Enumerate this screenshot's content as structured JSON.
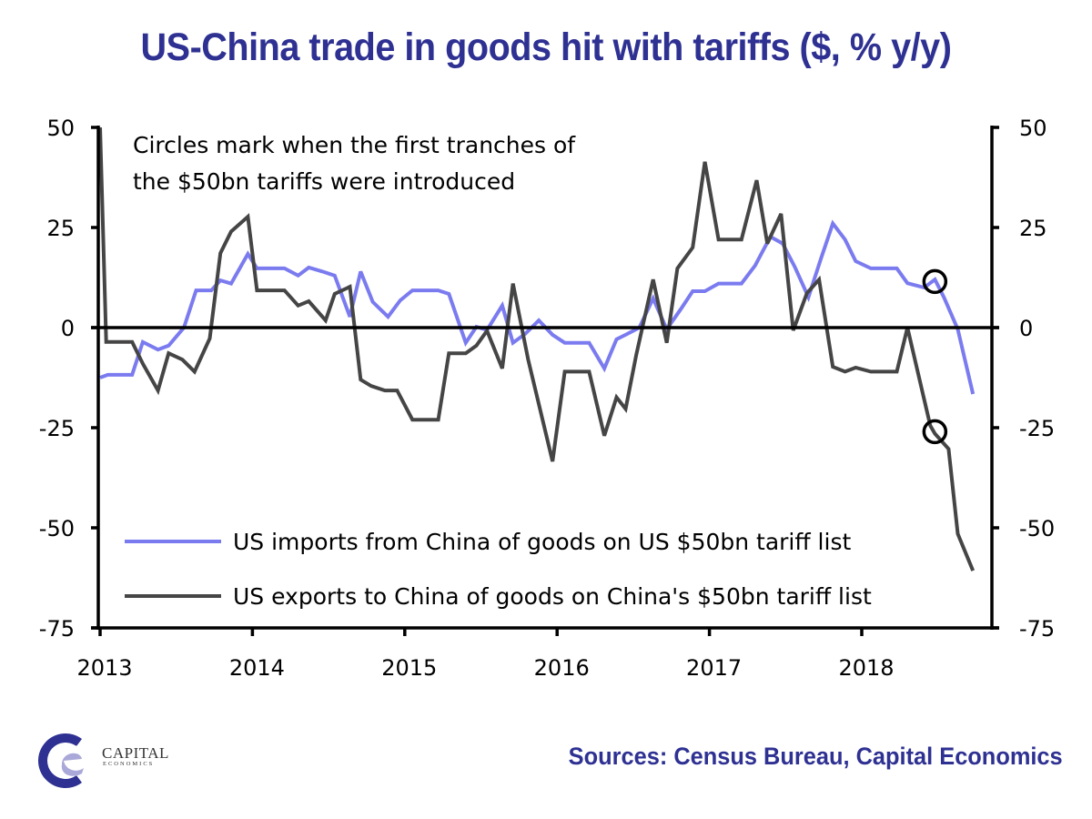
{
  "title": "US-China trade in goods hit with tariffs ($, % y/y)",
  "source": "Sources: Census Bureau, Capital Economics",
  "logo": {
    "line1": "CAPITAL",
    "line2": "ECONOMICS"
  },
  "colors": {
    "title": "#2e3192",
    "imports": "#7b7bf0",
    "exports": "#454545",
    "axis": "#000000"
  },
  "chart_data": {
    "type": "line",
    "title": "US-China trade in goods hit with tariffs ($, % y/y)",
    "xlabel": "",
    "ylabel": "",
    "xlim": [
      2013,
      2018.85
    ],
    "ylim": [
      -75,
      50
    ],
    "x_ticks": [
      2013,
      2014,
      2015,
      2016,
      2017,
      2018
    ],
    "x_tick_labels": [
      "2013",
      "2014",
      "2015",
      "2016",
      "2017",
      "2018"
    ],
    "y_ticks": [
      50,
      25,
      0,
      -25,
      -50,
      -75
    ],
    "y_tick_labels": [
      "50",
      "25",
      "0",
      "-25",
      "-50",
      "-75"
    ],
    "right_y_tick_labels": [
      "50",
      "25",
      "0",
      "-25",
      "-50",
      "-75"
    ],
    "grid": false,
    "legend_position": "bottom-left",
    "annotation": [
      "Circles mark when the first tranches of",
      "the $50bn  tariffs were introduced"
    ],
    "series": [
      {
        "name": "US imports from China of goods on US $50bn tariff list",
        "color": "#7b7bf0",
        "x": [
          2013.0,
          2013.05,
          2013.21,
          2013.28,
          2013.38,
          2013.45,
          2013.55,
          2013.63,
          2013.73,
          2013.79,
          2013.86,
          2013.97,
          2014.03,
          2014.21,
          2014.3,
          2014.37,
          2014.46,
          2014.54,
          2014.64,
          2014.71,
          2014.79,
          2014.89,
          2014.97,
          2015.05,
          2015.22,
          2015.29,
          2015.4,
          2015.47,
          2015.54,
          2015.64,
          2015.71,
          2015.79,
          2015.88,
          2015.97,
          2016.05,
          2016.21,
          2016.31,
          2016.39,
          2016.45,
          2016.54,
          2016.63,
          2016.72,
          2016.81,
          2016.89,
          2016.97,
          2017.06,
          2017.21,
          2017.3,
          2017.4,
          2017.48,
          2017.56,
          2017.65,
          2017.73,
          2017.81,
          2017.89,
          2017.96,
          2018.06,
          2018.23,
          2018.3,
          2018.41,
          2018.48,
          2018.54,
          2018.63,
          2018.73
        ],
        "y": [
          -12.5,
          -11.8,
          -11.8,
          -3.6,
          -5.5,
          -4.5,
          0,
          9.3,
          9.3,
          11.8,
          11,
          18.4,
          14.8,
          14.8,
          13,
          15,
          14,
          13,
          2.7,
          14,
          6.4,
          2.7,
          6.8,
          9.3,
          9.3,
          8.4,
          -3.8,
          0.2,
          -0.6,
          5.5,
          -3.8,
          -1.6,
          1.8,
          -1.8,
          -3.8,
          -3.8,
          -10.2,
          -2.9,
          -1.8,
          0,
          7.3,
          -0.4,
          4.5,
          9.1,
          9.1,
          11,
          11,
          15.5,
          22.7,
          21,
          15.2,
          7.6,
          17,
          26,
          22,
          16.6,
          14.8,
          14.8,
          11.1,
          10,
          12,
          7.5,
          -0.4,
          -16.6
        ]
      },
      {
        "name": "US exports to China of goods on China's $50bn tariff list",
        "color": "#454545",
        "x": [
          2013.0,
          2013.04,
          2013.21,
          2013.28,
          2013.38,
          2013.45,
          2013.54,
          2013.62,
          2013.72,
          2013.79,
          2013.86,
          2013.97,
          2014.03,
          2014.21,
          2014.3,
          2014.37,
          2014.48,
          2014.54,
          2014.64,
          2014.71,
          2014.78,
          2014.87,
          2014.95,
          2015.05,
          2015.22,
          2015.29,
          2015.4,
          2015.47,
          2015.54,
          2015.64,
          2015.71,
          2015.81,
          2015.97,
          2016.05,
          2016.21,
          2016.31,
          2016.39,
          2016.45,
          2016.52,
          2016.63,
          2016.72,
          2016.79,
          2016.89,
          2016.97,
          2017.06,
          2017.21,
          2017.31,
          2017.38,
          2017.47,
          2017.55,
          2017.64,
          2017.72,
          2017.81,
          2017.89,
          2017.96,
          2018.06,
          2018.23,
          2018.3,
          2018.45,
          2018.48,
          2018.57,
          2018.63,
          2018.73
        ],
        "y": [
          50,
          -3.6,
          -3.6,
          -9,
          -15.7,
          -6.4,
          -8,
          -11,
          -2.7,
          18.6,
          24,
          27.7,
          9.3,
          9.3,
          5.5,
          6.6,
          1.8,
          8.4,
          10.2,
          -13,
          -14.6,
          -15.7,
          -15.7,
          -23,
          -23,
          -6.4,
          -6.4,
          -4.5,
          -0.8,
          -10.2,
          11,
          -8,
          -33.4,
          -11,
          -11,
          -27,
          -17.4,
          -20.3,
          -6.8,
          12,
          -3.8,
          14.8,
          20,
          41.4,
          22,
          22,
          36.8,
          21,
          28.4,
          -0.7,
          8.6,
          12,
          -9.8,
          -11,
          -10,
          -11,
          -11,
          0,
          -24.5,
          -26.5,
          -30.3,
          -51.5,
          -60.7
        ]
      }
    ],
    "markers": [
      {
        "label": "tariff-introduction-imports",
        "x": 2018.48,
        "y": 11.5
      },
      {
        "label": "tariff-introduction-exports",
        "x": 2018.48,
        "y": -26
      }
    ]
  }
}
